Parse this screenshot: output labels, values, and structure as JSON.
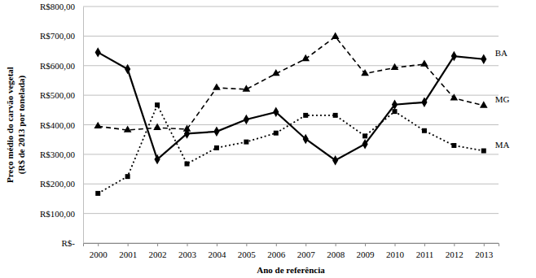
{
  "chart_data": {
    "type": "line",
    "y_label": [
      "Preço médio do carvão vegetal",
      "(R$ de 2013 por tonelada)"
    ],
    "x_label": "Ano de referência",
    "categories": [
      "2000",
      "2001",
      "2002",
      "2003",
      "2004",
      "2005",
      "2006",
      "2007",
      "2008",
      "2009",
      "2010",
      "2011",
      "2012",
      "2013"
    ],
    "series": [
      {
        "name": "BA",
        "color": "#000000",
        "line_style": "solid",
        "marker": "diamond",
        "values": [
          645,
          588,
          283,
          370,
          377,
          418,
          443,
          352,
          280,
          335,
          468,
          476,
          632,
          622
        ]
      },
      {
        "name": "MG",
        "color": "#000000",
        "line_style": "dashed",
        "marker": "triangle",
        "values": [
          395,
          382,
          390,
          385,
          525,
          520,
          573,
          623,
          698,
          573,
          593,
          605,
          490,
          465
        ]
      },
      {
        "name": "MA",
        "color": "#000000",
        "line_style": "dotted",
        "marker": "square",
        "values": [
          168,
          225,
          467,
          268,
          322,
          342,
          372,
          432,
          432,
          362,
          445,
          380,
          330,
          312
        ]
      }
    ],
    "ylim": [
      0,
      800
    ],
    "yticks": [
      {
        "value": 0,
        "label": "R$-"
      },
      {
        "value": 100,
        "label": "R$100,00"
      },
      {
        "value": 200,
        "label": "R$200,00"
      },
      {
        "value": 300,
        "label": "R$300,00"
      },
      {
        "value": 400,
        "label": "R$400,00"
      },
      {
        "value": 500,
        "label": "R$500,00"
      },
      {
        "value": 600,
        "label": "R$600,00"
      },
      {
        "value": 700,
        "label": "R$700,00"
      },
      {
        "value": 800,
        "label": "R$800,00"
      }
    ],
    "grid": true
  }
}
